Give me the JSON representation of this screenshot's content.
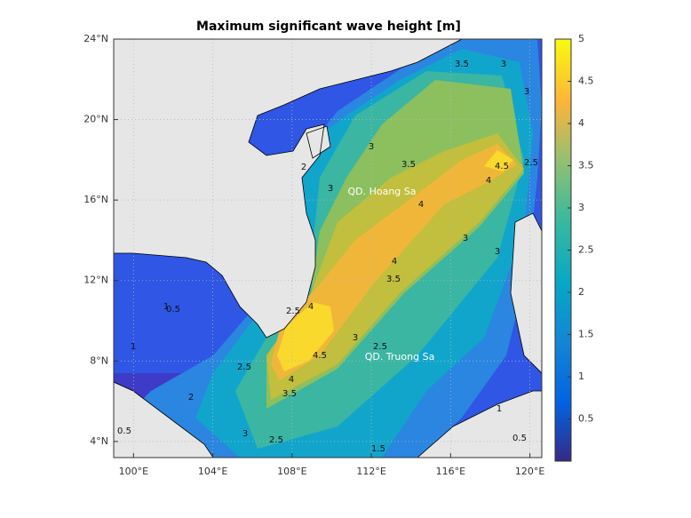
{
  "title": "Maximum significant wave height [m]",
  "map": {
    "xlim": [
      99,
      120.6
    ],
    "ylim": [
      3.2,
      24
    ],
    "xticks": [
      {
        "value": 100,
        "label": "100°E"
      },
      {
        "value": 104,
        "label": "104°E"
      },
      {
        "value": 108,
        "label": "108°E"
      },
      {
        "value": 112,
        "label": "112°E"
      },
      {
        "value": 116,
        "label": "116°E"
      },
      {
        "value": 120,
        "label": "120°E"
      }
    ],
    "yticks": [
      {
        "value": 4,
        "label": "4°N"
      },
      {
        "value": 8,
        "label": "8°N"
      },
      {
        "value": 12,
        "label": "12°N"
      },
      {
        "value": 16,
        "label": "16°N"
      },
      {
        "value": 20,
        "label": "20°N"
      },
      {
        "value": 24,
        "label": "24°N"
      }
    ],
    "grid": true
  },
  "colorbar": {
    "clim": [
      0,
      5
    ],
    "ticks": [
      0.5,
      1,
      1.5,
      2,
      2.5,
      3,
      3.5,
      4,
      4.5,
      5
    ]
  },
  "place_labels": [
    "QD. Hoang Sa",
    "QD. Truong Sa"
  ],
  "contour_labels": [
    3.5,
    3,
    3,
    3,
    3.5,
    4.5,
    4,
    2.5,
    2,
    3,
    4,
    3,
    4,
    3.5,
    3,
    2.5,
    4,
    4.5,
    4,
    3.5,
    3,
    2.5,
    2.5,
    2,
    2.5,
    3,
    1.5,
    1,
    0.5,
    1,
    0.5,
    0.5,
    1
  ]
}
